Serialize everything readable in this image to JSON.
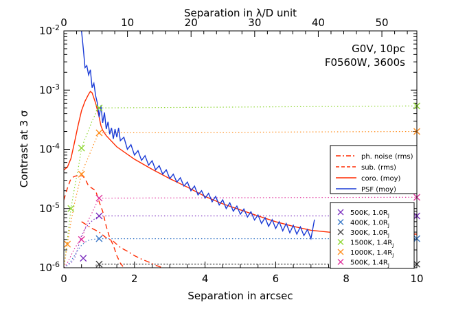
{
  "chart_data": {
    "type": "line",
    "title": "",
    "annotation": [
      "G0V, 10pc",
      "F0560W, 3600s"
    ],
    "xlabel": "Separation in arcsec",
    "x2label": "Separation in λ/D unit",
    "ylabel": "Contrast at 3 σ",
    "xlim": [
      0,
      10
    ],
    "x2lim": [
      0,
      55.5
    ],
    "ylim": [
      1e-06,
      0.01
    ],
    "yscale": "log",
    "xticks": [
      0,
      2,
      4,
      6,
      8,
      10
    ],
    "xtick_labels": [
      "0",
      "2",
      "4",
      "6",
      "8",
      "10"
    ],
    "x2ticks": [
      0,
      10,
      20,
      30,
      40,
      50
    ],
    "x2tick_labels": [
      "0",
      "10",
      "20",
      "30",
      "40",
      "50"
    ],
    "yticks": [
      1e-06,
      1e-05,
      0.0001,
      0.001,
      0.01
    ],
    "ytick_labels": [
      {
        "base": "10",
        "exp": "-6"
      },
      {
        "base": "10",
        "exp": "-5"
      },
      {
        "base": "10",
        "exp": "-4"
      },
      {
        "base": "10",
        "exp": "-3"
      },
      {
        "base": "10",
        "exp": "-2"
      }
    ],
    "series": [
      {
        "name": "coro. (moy)",
        "color": "#ff2a00",
        "dash": "solid",
        "x": [
          0,
          0.1,
          0.2,
          0.3,
          0.4,
          0.5,
          0.6,
          0.7,
          0.75,
          0.8,
          0.9,
          1.0,
          1.05,
          1.1,
          1.2,
          1.5,
          2.0,
          2.5,
          3.0,
          3.5,
          4.0,
          4.5,
          5.0,
          5.5,
          6.0,
          6.5,
          7.0,
          7.5,
          8.0,
          8.5,
          9.0,
          9.5,
          10.0
        ],
        "y": [
          4.5e-05,
          5e-05,
          7e-05,
          0.00013,
          0.00025,
          0.00045,
          0.00065,
          0.00085,
          0.00095,
          0.0009,
          0.0006,
          0.00035,
          0.00025,
          0.00021,
          0.00017,
          0.00011,
          6.8e-05,
          4.6e-05,
          3.2e-05,
          2.3e-05,
          1.6e-05,
          1.2e-05,
          9.5e-06,
          7.5e-06,
          6e-06,
          5e-06,
          4.3e-06,
          4e-06,
          3.8e-06,
          3.8e-06,
          3.7e-06,
          3.7e-06,
          3.7e-06
        ]
      },
      {
        "name": "PSF (moy)",
        "color": "#1a3bd6",
        "dash": "solid",
        "x": [
          0.5,
          0.55,
          0.6,
          0.65,
          0.7,
          0.75,
          0.8,
          0.85,
          0.9,
          0.95,
          1.0,
          1.05,
          1.1,
          1.15,
          1.2,
          1.25,
          1.3,
          1.35,
          1.4,
          1.45,
          1.5,
          1.55,
          1.6,
          1.7,
          1.8,
          1.9,
          2.0,
          2.1,
          2.2,
          2.3,
          2.4,
          2.5,
          2.6,
          2.7,
          2.8,
          2.9,
          3.0,
          3.1,
          3.2,
          3.3,
          3.4,
          3.5,
          3.6,
          3.7,
          3.8,
          3.9,
          4.0,
          4.1,
          4.2,
          4.3,
          4.4,
          4.5,
          4.6,
          4.7,
          4.8,
          4.9,
          5.0,
          5.1,
          5.2,
          5.3,
          5.4,
          5.5,
          5.6,
          5.7,
          5.8,
          5.9,
          6.0,
          6.1,
          6.2,
          6.3,
          6.4,
          6.5,
          6.6,
          6.7,
          6.8,
          6.9,
          7.0,
          7.1
        ],
        "y": [
          0.01,
          0.005,
          0.0024,
          0.0026,
          0.0018,
          0.0022,
          0.0011,
          0.0013,
          0.0008,
          0.0006,
          0.00035,
          0.00055,
          0.00028,
          0.00042,
          0.00022,
          0.00029,
          0.00018,
          0.00023,
          0.00015,
          0.00022,
          0.00016,
          0.00023,
          0.00014,
          0.00016,
          0.0001,
          0.00012,
          8e-05,
          9.5e-05,
          6.5e-05,
          7.8e-05,
          5.4e-05,
          6.4e-05,
          4.5e-05,
          5.3e-05,
          3.8e-05,
          4.5e-05,
          3.2e-05,
          3.8e-05,
          2.8e-05,
          3.3e-05,
          2.4e-05,
          2.8e-05,
          2e-05,
          2.4e-05,
          1.7e-05,
          2e-05,
          1.5e-05,
          1.8e-05,
          1.3e-05,
          1.6e-05,
          1.15e-05,
          1.4e-05,
          1e-05,
          1.25e-05,
          9e-06,
          1.1e-05,
          8e-06,
          9.8e-06,
          7.2e-06,
          8.8e-06,
          6.4e-06,
          7.8e-06,
          5.6e-06,
          7e-06,
          5e-06,
          6.5e-06,
          4.6e-06,
          6e-06,
          4.2e-06,
          5.6e-06,
          3.9e-06,
          5.2e-06,
          3.7e-06,
          4.9e-06,
          3.5e-06,
          4.4e-06,
          3.1e-06,
          6.5e-06
        ]
      },
      {
        "name": "sub. (rms)",
        "color": "#ff2a00",
        "dash": "dashed",
        "x": [
          0,
          0.1,
          0.2,
          0.3,
          0.4,
          0.5,
          0.6,
          0.7,
          0.8,
          0.9,
          1.0,
          1.1,
          1.2,
          1.3,
          1.4,
          1.5,
          1.6,
          1.7
        ],
        "y": [
          1.4e-05,
          2.2e-05,
          3.2e-05,
          3.5e-05,
          3.6e-05,
          3.7e-05,
          3.2e-05,
          2.4e-05,
          2.2e-05,
          2e-05,
          1.3e-05,
          9e-06,
          5e-06,
          3.2e-06,
          2.4e-06,
          1.6e-06,
          1.2e-06,
          1e-06
        ]
      },
      {
        "name": "ph. noise (rms)",
        "color": "#ff2a00",
        "dash": "dashdot",
        "x": [
          0.5,
          0.6,
          0.7,
          0.8,
          0.9,
          1.0,
          1.2,
          1.4,
          1.6,
          1.8,
          2.0,
          2.2,
          2.4,
          2.6,
          2.8
        ],
        "y": [
          6e-06,
          5.5e-06,
          5e-06,
          4.6e-06,
          4.3e-06,
          4e-06,
          3.2e-06,
          2.8e-06,
          2.2e-06,
          1.9e-06,
          1.6e-06,
          1.4e-06,
          1.25e-06,
          1.1e-06,
          1e-06
        ]
      }
    ],
    "planets": [
      {
        "label": "500K, 1.0R",
        "sub": "J",
        "color": "#7b2fbf",
        "x": [
          0,
          0.1,
          0.2,
          0.3,
          0.4,
          0.5,
          0.6,
          0.7,
          0.8,
          0.9,
          1.0
        ],
        "y": [
          1e-06,
          1.1e-06,
          1.2e-06,
          1.4e-06,
          2.2e-06,
          3.5e-06,
          4.6e-06,
          5.4e-06,
          6.2e-06,
          6.9e-06,
          7.5e-06
        ],
        "cross_x": [
          0.55,
          1.0,
          10.0
        ],
        "cross_y": [
          1.45e-06,
          7.5e-06,
          7.5e-06
        ]
      },
      {
        "label": "400K, 1.0R",
        "sub": "J",
        "color": "#3a78c8",
        "x": [
          0,
          0.1,
          0.2,
          0.3,
          0.4,
          0.5,
          0.6,
          0.7,
          0.8,
          0.9,
          1.0
        ],
        "y": [
          1e-06,
          1.1e-06,
          1.3e-06,
          1.6e-06,
          2e-06,
          2.4e-06,
          2.7e-06,
          2.9e-06,
          3e-06,
          3.05e-06,
          3.1e-06
        ],
        "cross_x": [
          1.0,
          10.0
        ],
        "cross_y": [
          3.1e-06,
          3.1e-06
        ]
      },
      {
        "label": "300K, 1.0R",
        "sub": "J",
        "color": "#444444",
        "x": [
          0.9,
          1.0,
          10.0
        ],
        "y": [
          1.1e-06,
          1.15e-06,
          1.15e-06
        ],
        "cross_x": [
          1.0,
          10.0
        ],
        "cross_y": [
          1.15e-06,
          1.15e-06
        ]
      },
      {
        "label": "1500K, 1.4R",
        "sub": "J",
        "color": "#8dd630",
        "x": [
          0,
          0.1,
          0.2,
          0.3,
          0.4,
          0.5,
          0.6,
          0.7,
          0.8,
          0.9,
          1.0
        ],
        "y": [
          1e-06,
          3e-06,
          1e-05,
          2.2e-05,
          4.5e-05,
          0.000105,
          0.00015,
          0.00021,
          0.0003,
          0.0004,
          0.0005
        ],
        "cross_x": [
          0.2,
          0.5,
          1.0,
          10.0
        ],
        "cross_y": [
          1e-05,
          0.000105,
          0.0005,
          0.00054
        ]
      },
      {
        "label": "1000K, 1.4R",
        "sub": "J",
        "color": "#ff8c1a",
        "x": [
          0,
          0.1,
          0.2,
          0.3,
          0.4,
          0.5,
          0.6,
          0.7,
          0.8,
          0.9,
          1.0
        ],
        "y": [
          1e-06,
          2.5e-06,
          6e-06,
          1.2e-05,
          2.2e-05,
          3.8e-05,
          5.5e-05,
          7.5e-05,
          0.000105,
          0.000145,
          0.00019
        ],
        "cross_x": [
          0.1,
          0.5,
          1.0,
          10.0
        ],
        "cross_y": [
          2.5e-06,
          3.8e-05,
          0.00019,
          0.0002
        ]
      },
      {
        "label": "500K, 1.4R",
        "sub": "J",
        "color": "#e0309c",
        "x": [
          0,
          0.1,
          0.2,
          0.3,
          0.4,
          0.5,
          0.6,
          0.7,
          0.8,
          0.9,
          1.0
        ],
        "y": [
          1e-06,
          1.2e-06,
          1.6e-06,
          2.1e-06,
          2.6e-06,
          3e-06,
          4.5e-06,
          6.5e-06,
          8.5e-06,
          1.15e-05,
          1.5e-05
        ],
        "cross_x": [
          0.5,
          1.0,
          10.0
        ],
        "cross_y": [
          3e-06,
          1.5e-05,
          1.55e-05
        ]
      }
    ]
  }
}
